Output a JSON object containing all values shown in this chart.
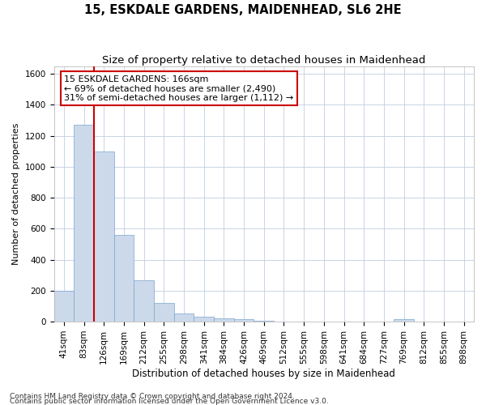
{
  "title1": "15, ESKDALE GARDENS, MAIDENHEAD, SL6 2HE",
  "title2": "Size of property relative to detached houses in Maidenhead",
  "xlabel": "Distribution of detached houses by size in Maidenhead",
  "ylabel": "Number of detached properties",
  "categories": [
    "41sqm",
    "83sqm",
    "126sqm",
    "169sqm",
    "212sqm",
    "255sqm",
    "298sqm",
    "341sqm",
    "384sqm",
    "426sqm",
    "469sqm",
    "512sqm",
    "555sqm",
    "598sqm",
    "641sqm",
    "684sqm",
    "727sqm",
    "769sqm",
    "812sqm",
    "855sqm",
    "898sqm"
  ],
  "values": [
    200,
    1270,
    1100,
    560,
    265,
    120,
    55,
    30,
    20,
    15,
    5,
    3,
    2,
    1,
    1,
    0,
    0,
    15,
    0,
    0,
    0
  ],
  "bar_color": "#ccd9ea",
  "bar_edge_color": "#7aa6cc",
  "highlight_bar_index": 2,
  "annotation_text": "15 ESKDALE GARDENS: 166sqm\n← 69% of detached houses are smaller (2,490)\n31% of semi-detached houses are larger (1,112) →",
  "annotation_box_edge_color": "#cc0000",
  "red_line_color": "#cc0000",
  "ylim": [
    0,
    1650
  ],
  "yticks": [
    0,
    200,
    400,
    600,
    800,
    1000,
    1200,
    1400,
    1600
  ],
  "footer1": "Contains HM Land Registry data © Crown copyright and database right 2024.",
  "footer2": "Contains public sector information licensed under the Open Government Licence v3.0.",
  "bg_color": "#ffffff",
  "grid_color": "#c0cfe0",
  "title1_fontsize": 10.5,
  "title2_fontsize": 9.5,
  "xlabel_fontsize": 8.5,
  "ylabel_fontsize": 8,
  "tick_fontsize": 7.5,
  "annotation_fontsize": 8,
  "footer_fontsize": 6.5
}
